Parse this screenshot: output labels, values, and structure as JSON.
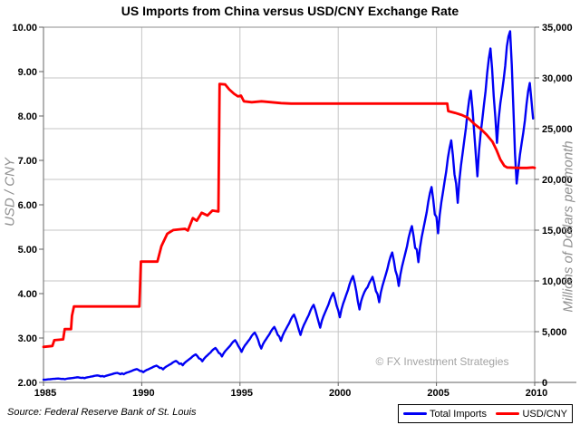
{
  "title": "US Imports from China versus USD/CNY Exchange Rate",
  "watermark": "© FX Investment Strategies",
  "source_note": "Source: Federal Reserve Bank of St. Louis",
  "colors": {
    "background": "#FFFFFF",
    "grid": "#C6C6C6",
    "border": "#8C8C8C",
    "axis": "#808080",
    "tick": "#606060",
    "text": "#000000",
    "muted": "#8F8F8F",
    "imports_line": "#0000F5",
    "fx_line": "#FF0000"
  },
  "legend": {
    "position": "bottom-right",
    "items": [
      {
        "label": "Total Imports",
        "color": "#0000F5"
      },
      {
        "label": "USD/CNY",
        "color": "#FF0000"
      }
    ]
  },
  "axes": {
    "left": {
      "title": "USD / CNY",
      "range": [
        2,
        10
      ],
      "tick_values": [
        2,
        3,
        4,
        5,
        6,
        7,
        8,
        9,
        10
      ],
      "tick_labels": [
        "2.00",
        "3.00",
        "4.00",
        "5.00",
        "6.00",
        "7.00",
        "8.00",
        "9.00",
        "10.00"
      ]
    },
    "right": {
      "title": "Millions of Dollars per month",
      "range": [
        0,
        35000
      ],
      "tick_values": [
        0,
        5000,
        10000,
        15000,
        20000,
        25000,
        30000,
        35000
      ],
      "tick_labels": [
        "0",
        "5,000",
        "10,000",
        "15,000",
        "20,000",
        "25,000",
        "30,000",
        "35,000"
      ]
    },
    "x": {
      "range": [
        1985,
        2010
      ],
      "tick_values": [
        1985,
        1990,
        1995,
        2000,
        2005,
        2010
      ],
      "tick_labels": [
        "1985",
        "1990",
        "1995",
        "2000",
        "2005",
        "2010"
      ]
    }
  },
  "chart_data": {
    "type": "line",
    "title": "US Imports from China versus USD/CNY Exchange Rate",
    "grid": "horizontal at right-axis ticks, vertical at 5-year ticks",
    "legend_position": "bottom-right",
    "x_unit": "year (monthly data)",
    "series": [
      {
        "name": "Total Imports",
        "axis": "right",
        "units": "millions of dollars per month",
        "color": "#0000F5",
        "x_start": 1985.0,
        "x_step": 0.0833333,
        "values": [
          280,
          255,
          285,
          300,
          310,
          330,
          345,
          360,
          375,
          385,
          365,
          335,
          345,
          315,
          355,
          380,
          400,
          420,
          440,
          465,
          490,
          505,
          475,
          440,
          460,
          420,
          470,
          505,
          535,
          570,
          600,
          640,
          670,
          690,
          650,
          600,
          630,
          570,
          640,
          690,
          730,
          780,
          820,
          875,
          915,
          940,
          885,
          810,
          890,
          805,
          905,
          970,
          1020,
          1080,
          1140,
          1210,
          1270,
          1310,
          1230,
          1125,
          1120,
          1010,
          1135,
          1220,
          1290,
          1370,
          1440,
          1530,
          1600,
          1650,
          1550,
          1420,
          1430,
          1290,
          1450,
          1560,
          1650,
          1750,
          1840,
          1960,
          2050,
          2120,
          1990,
          1820,
          1870,
          1690,
          1895,
          2040,
          2160,
          2285,
          2400,
          2555,
          2670,
          2760,
          2590,
          2370,
          2300,
          2080,
          2330,
          2510,
          2655,
          2810,
          2950,
          3140,
          3290,
          3390,
          3190,
          2920,
          2820,
          2550,
          2860,
          3080,
          3260,
          3450,
          3620,
          3850,
          4040,
          4160,
          3910,
          3580,
          3330,
          3010,
          3370,
          3630,
          3840,
          4060,
          4270,
          4540,
          4760,
          4910,
          4610,
          4220,
          3700,
          3340,
          3750,
          4040,
          4270,
          4520,
          4750,
          5050,
          5290,
          5460,
          5130,
          4700,
          4530,
          4100,
          4590,
          4940,
          5230,
          5530,
          5810,
          6180,
          6480,
          6680,
          6280,
          5750,
          5180,
          4680,
          5250,
          5650,
          5980,
          6320,
          6640,
          7060,
          7400,
          7640,
          7170,
          6570,
          5970,
          5390,
          6050,
          6510,
          6890,
          7290,
          7660,
          8140,
          8530,
          8810,
          8270,
          7580,
          7100,
          6420,
          7200,
          7750,
          8200,
          8670,
          9110,
          9690,
          10150,
          10480,
          9840,
          9010,
          7960,
          7190,
          8000,
          8500,
          8900,
          9200,
          9400,
          9800,
          10100,
          10400,
          9800,
          9000,
          8700,
          7900,
          8850,
          9500,
          10050,
          10600,
          11150,
          11850,
          12400,
          12800,
          12000,
          11000,
          10500,
          9500,
          10650,
          11450,
          12100,
          12750,
          13400,
          14250,
          14900,
          15400,
          14450,
          13250,
          13100,
          11850,
          13300,
          14300,
          15100,
          15950,
          16750,
          17800,
          18650,
          19250,
          18050,
          16550,
          16300,
          14700,
          16500,
          17750,
          18750,
          19800,
          20800,
          22100,
          23100,
          23850,
          22400,
          20500,
          19600,
          17700,
          19900,
          21400,
          22600,
          23850,
          25050,
          26600,
          27850,
          28750,
          27000,
          24700,
          22500,
          20300,
          22850,
          24550,
          25900,
          27350,
          28700,
          30500,
          31900,
          32900,
          30900,
          28200,
          26100,
          23600,
          26000,
          27500,
          28600,
          29800,
          31200,
          33100,
          34100,
          34600,
          31300,
          27000,
          22500,
          19600,
          21000,
          22400,
          23500,
          24600,
          25800,
          27400,
          28700,
          29500,
          27800,
          26000
        ]
      },
      {
        "name": "USD/CNY",
        "axis": "left",
        "units": "yuan per dollar",
        "color": "#FF0000",
        "points": [
          [
            1985.0,
            2.8
          ],
          [
            1985.45,
            2.82
          ],
          [
            1985.55,
            2.95
          ],
          [
            1986.0,
            2.97
          ],
          [
            1986.08,
            3.2
          ],
          [
            1986.4,
            3.2
          ],
          [
            1986.45,
            3.5
          ],
          [
            1986.55,
            3.71
          ],
          [
            1989.88,
            3.71
          ],
          [
            1989.96,
            4.72
          ],
          [
            1990.8,
            4.72
          ],
          [
            1991.0,
            5.07
          ],
          [
            1991.3,
            5.35
          ],
          [
            1991.6,
            5.43
          ],
          [
            1992.2,
            5.46
          ],
          [
            1992.35,
            5.42
          ],
          [
            1992.6,
            5.7
          ],
          [
            1992.8,
            5.64
          ],
          [
            1993.05,
            5.82
          ],
          [
            1993.35,
            5.76
          ],
          [
            1993.6,
            5.87
          ],
          [
            1993.9,
            5.85
          ],
          [
            1993.96,
            8.72
          ],
          [
            1994.25,
            8.71
          ],
          [
            1994.45,
            8.6
          ],
          [
            1994.7,
            8.5
          ],
          [
            1994.9,
            8.44
          ],
          [
            1995.05,
            8.46
          ],
          [
            1995.2,
            8.33
          ],
          [
            1995.6,
            8.31
          ],
          [
            1996.1,
            8.33
          ],
          [
            1996.6,
            8.31
          ],
          [
            1997.1,
            8.29
          ],
          [
            1997.6,
            8.28
          ],
          [
            2005.55,
            8.28
          ],
          [
            2005.6,
            8.11
          ],
          [
            2005.95,
            8.07
          ],
          [
            2006.3,
            8.02
          ],
          [
            2006.6,
            7.96
          ],
          [
            2006.95,
            7.81
          ],
          [
            2007.25,
            7.71
          ],
          [
            2007.55,
            7.58
          ],
          [
            2007.85,
            7.42
          ],
          [
            2008.05,
            7.24
          ],
          [
            2008.25,
            7.02
          ],
          [
            2008.45,
            6.88
          ],
          [
            2008.6,
            6.84
          ],
          [
            2009.2,
            6.83
          ],
          [
            2009.6,
            6.83
          ],
          [
            2009.9,
            6.84
          ],
          [
            2010.0,
            6.83
          ]
        ]
      }
    ]
  }
}
